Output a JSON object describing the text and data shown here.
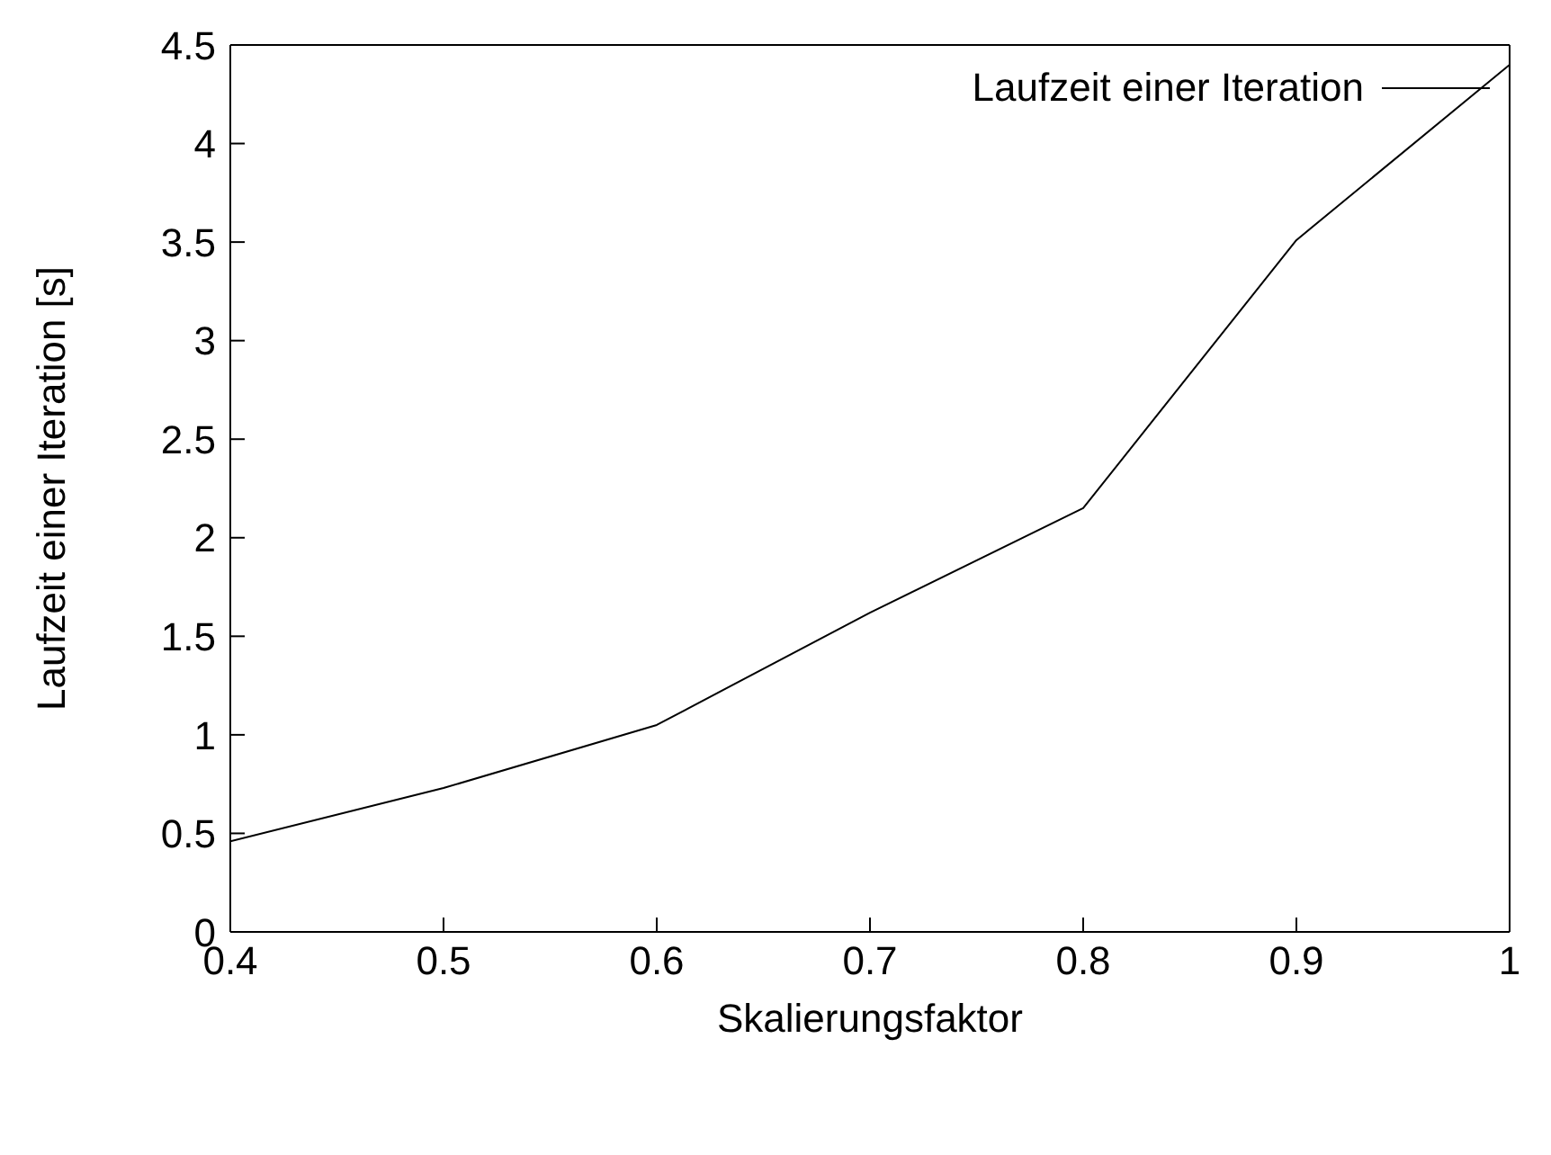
{
  "chart_data": {
    "type": "line",
    "xlabel": "Skalierungsfaktor",
    "ylabel": "Laufzeit einer Iteration [s]",
    "x": [
      0.4,
      0.5,
      0.6,
      0.7,
      0.8,
      0.9,
      1.0
    ],
    "series": [
      {
        "name": "Laufzeit einer Iteration",
        "color": "#000000",
        "values": [
          0.46,
          0.73,
          1.05,
          1.62,
          2.15,
          3.51,
          4.4
        ]
      }
    ],
    "xlim": [
      0.4,
      1.0
    ],
    "xticks": [
      {
        "value": 0.4,
        "label": "0.4"
      },
      {
        "value": 0.5,
        "label": "0.5"
      },
      {
        "value": 0.6,
        "label": "0.6"
      },
      {
        "value": 0.7,
        "label": "0.7"
      },
      {
        "value": 0.8,
        "label": "0.8"
      },
      {
        "value": 0.9,
        "label": "0.9"
      },
      {
        "value": 1.0,
        "label": "1"
      }
    ],
    "ylim": [
      0,
      4.5
    ],
    "yticks": [
      0,
      0.5,
      1,
      1.5,
      2,
      2.5,
      3,
      3.5,
      4,
      4.5
    ],
    "grid": false,
    "legend": "top right",
    "marker": "none",
    "line_style": "solid"
  }
}
